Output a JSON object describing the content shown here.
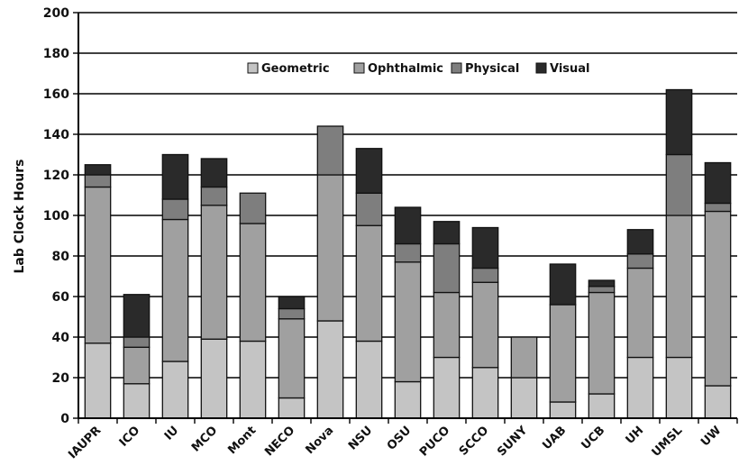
{
  "chart_data": {
    "type": "bar",
    "stacked": true,
    "title": "",
    "xlabel": "",
    "ylabel": "Lab Clock Hours",
    "ylim": [
      0,
      200
    ],
    "yticks": [
      0,
      20,
      40,
      60,
      80,
      100,
      120,
      140,
      160,
      180,
      200
    ],
    "grid": true,
    "legend_position": "top-center",
    "categories": [
      "IAUPR",
      "ICO",
      "IU",
      "MCO",
      "Mont",
      "NECO",
      "Nova",
      "NSU",
      "OSU",
      "PUCO",
      "SCCO",
      "SUNY",
      "UAB",
      "UCB",
      "UH",
      "UMSL",
      "UW"
    ],
    "series": [
      {
        "name": "Geometric",
        "color": "#c4c4c4",
        "values": [
          37,
          17,
          28,
          39,
          38,
          10,
          48,
          38,
          18,
          30,
          25,
          20,
          8,
          12,
          30,
          30,
          16
        ]
      },
      {
        "name": "Ophthalmic",
        "color": "#a0a0a0",
        "values": [
          77,
          18,
          70,
          66,
          58,
          39,
          72,
          57,
          59,
          32,
          42,
          20,
          48,
          50,
          44,
          70,
          86
        ]
      },
      {
        "name": "Physical",
        "color": "#7e7e7e",
        "values": [
          6,
          5,
          10,
          9,
          15,
          5,
          24,
          16,
          9,
          24,
          7,
          0,
          0,
          3,
          7,
          30,
          4
        ]
      },
      {
        "name": "Visual",
        "color": "#2a2a2a",
        "values": [
          5,
          21,
          22,
          14,
          0,
          6,
          0,
          22,
          18,
          11,
          20,
          0,
          20,
          3,
          12,
          32,
          20
        ]
      }
    ]
  }
}
